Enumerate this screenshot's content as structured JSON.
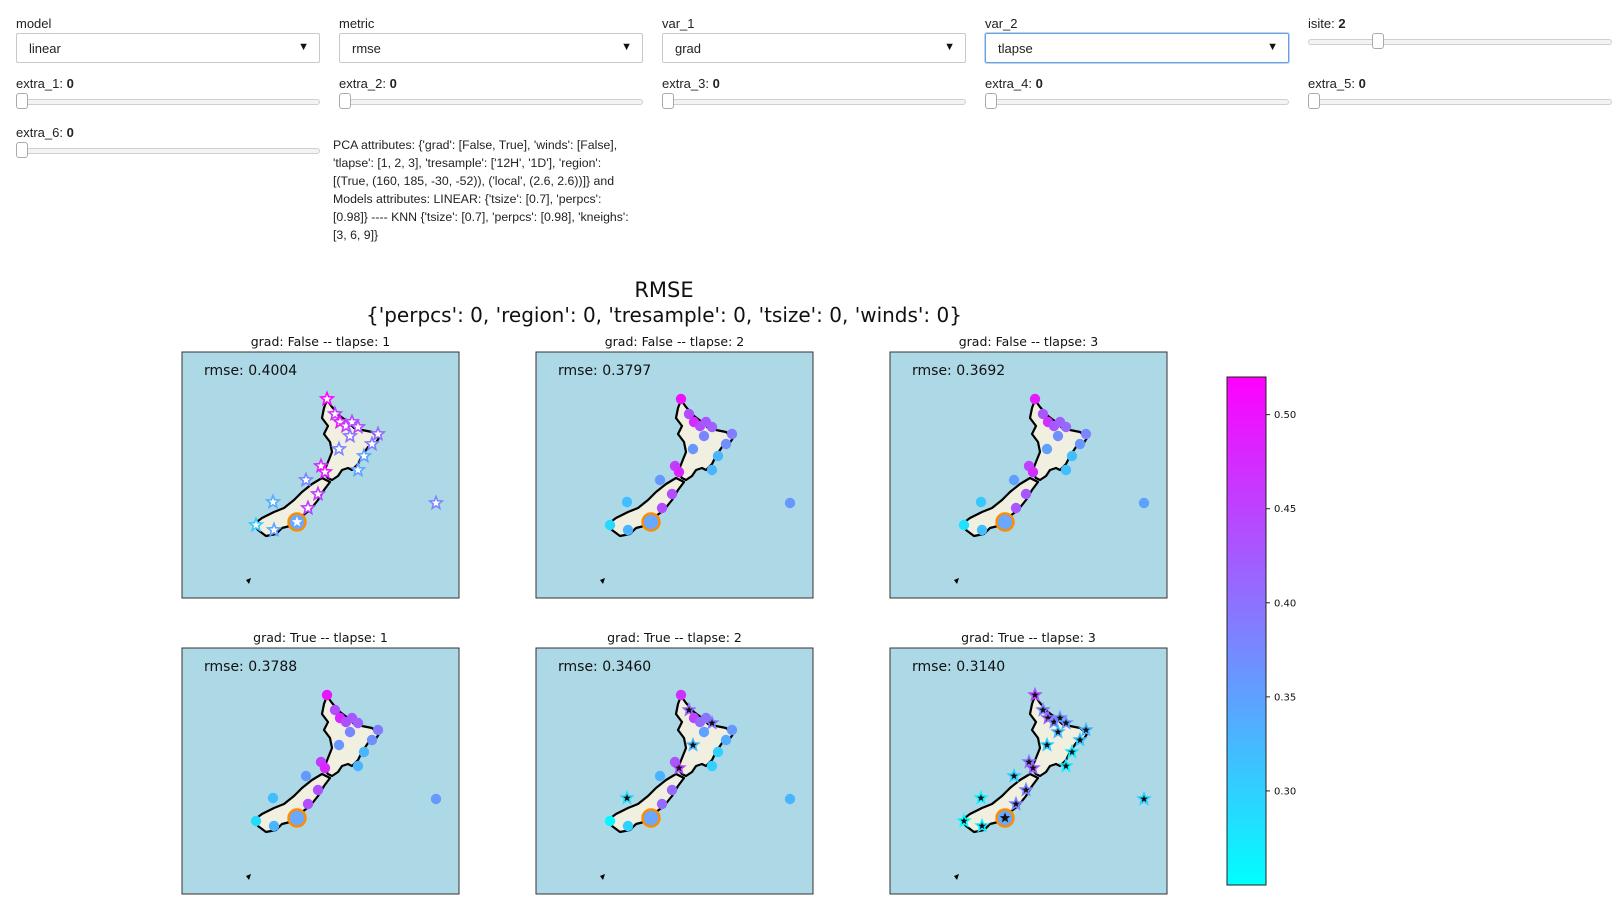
{
  "controls": {
    "model": {
      "label": "model",
      "value": "linear"
    },
    "metric": {
      "label": "metric",
      "value": "rmse"
    },
    "var_1": {
      "label": "var_1",
      "value": "grad"
    },
    "var_2": {
      "label": "var_2",
      "value": "tlapse"
    },
    "isite": {
      "label": "isite:",
      "value": "2",
      "fraction": 0.22
    },
    "extra_1": {
      "label": "extra_1:",
      "value": "0"
    },
    "extra_2": {
      "label": "extra_2:",
      "value": "0"
    },
    "extra_3": {
      "label": "extra_3:",
      "value": "0"
    },
    "extra_4": {
      "label": "extra_4:",
      "value": "0"
    },
    "extra_5": {
      "label": "extra_5:",
      "value": "0"
    },
    "extra_6": {
      "label": "extra_6:",
      "value": "0"
    },
    "dropdown_icon": "caret-down-icon"
  },
  "info_text": "PCA attributes: {'grad': [False, True], 'winds': [False], 'tlapse': [1, 2, 3], 'tresample': ['12H', '1D'], 'region': [(True, (160, 185, -30, -52)), ('local', (2.6, 2.6))]} and Models attributes: LINEAR: {'tsize': [0.7], 'perpcs': [0.98]} ---- KNN {'tsize': [0.7], 'perpcs': [0.98], 'kneighs': [3, 6, 9]}",
  "figure": {
    "title": "RMSE",
    "subtitle": "{'perpcs': 0, 'region': 0, 'tresample': 0, 'tsize': 0, 'winds': 0}",
    "colors": {
      "ocean": "#add8e6",
      "land": "#f0efe0",
      "cmap_low": "#00ffff",
      "cmap_high": "#ff00ff",
      "highlight": "#ff8c00"
    },
    "colorbar": {
      "ticks": [
        "0.30",
        "0.35",
        "0.40",
        "0.45",
        "0.50"
      ],
      "tick_values": [
        0.3,
        0.35,
        0.4,
        0.45,
        0.5
      ],
      "min": 0.25,
      "max": 0.52
    }
  },
  "chart_data": [
    {
      "type": "scatter",
      "title": "grad: False -- tlapse: 1",
      "metric_label": "rmse:  0.4004",
      "rmse": 0.4004,
      "marker": "star-white"
    },
    {
      "type": "scatter",
      "title": "grad: False -- tlapse: 2",
      "metric_label": "rmse:  0.3797",
      "rmse": 0.3797,
      "marker": "circle"
    },
    {
      "type": "scatter",
      "title": "grad: False -- tlapse: 3",
      "metric_label": "rmse:  0.3692",
      "rmse": 0.3692,
      "marker": "circle"
    },
    {
      "type": "scatter",
      "title": "grad: True -- tlapse: 1",
      "metric_label": "rmse:  0.3788",
      "rmse": 0.3788,
      "marker": "circle"
    },
    {
      "type": "scatter",
      "title": "grad: True -- tlapse: 2",
      "metric_label": "rmse:  0.3460",
      "rmse": 0.346,
      "marker": "circle-star"
    },
    {
      "type": "scatter",
      "title": "grad: True -- tlapse: 3",
      "metric_label": "rmse:  0.3140",
      "rmse": 0.314,
      "marker": "star-black"
    }
  ]
}
